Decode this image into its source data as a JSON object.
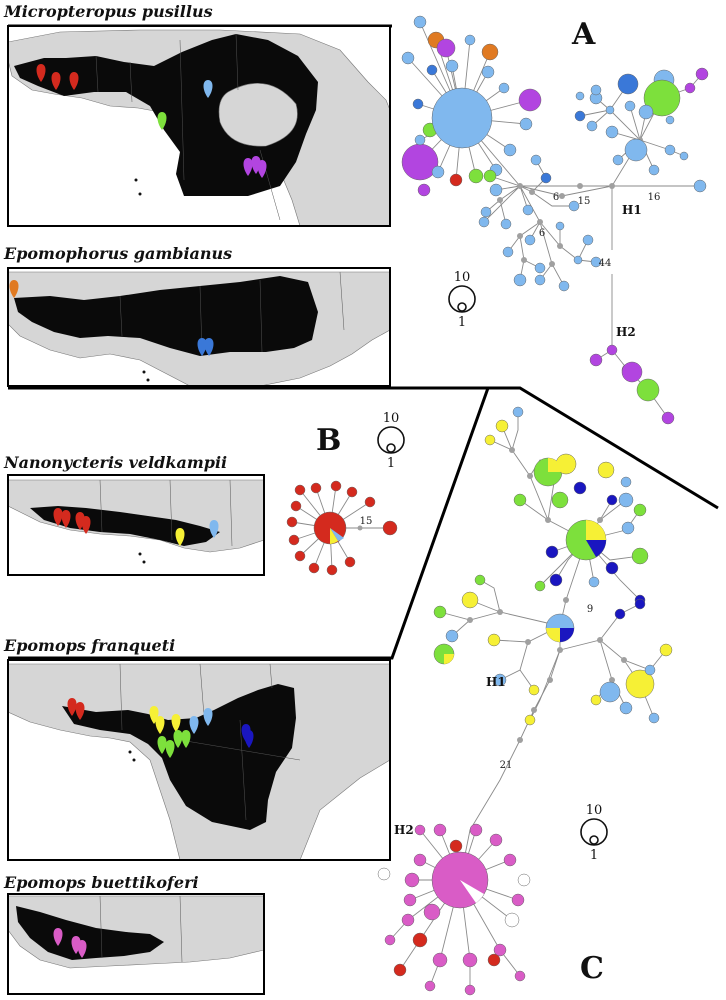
{
  "colors": {
    "red": "#d42a1e",
    "orange": "#e07a22",
    "lightblue": "#80b8ee",
    "blue": "#3a78d8",
    "navy": "#1a16c0",
    "green": "#7de03c",
    "purple": "#b245e0",
    "yellow": "#f6f035",
    "pink": "#d95cc6",
    "grey": "#a0a0a0",
    "range": "#0a0a0a",
    "land": "#d6d6d6"
  },
  "panels": {
    "A": {
      "label": "A",
      "species": [
        "Micropteropus pusillus",
        "Epomophorus gambianus"
      ],
      "hap1": "H1",
      "hap2": "H2",
      "branch_counts": [
        "16",
        "6",
        "15",
        "6",
        "44"
      ]
    },
    "B": {
      "label": "B",
      "species": "Nanonycteris veldkampii",
      "branch_count": "15"
    },
    "C": {
      "label": "C",
      "species": [
        "Epomops franqueti",
        "Epomops buettikoferi"
      ],
      "hap1": "H1",
      "hap2": "H2",
      "branch_counts": [
        "9",
        "21"
      ]
    }
  },
  "size_scale": {
    "large": "10",
    "small": "1"
  }
}
